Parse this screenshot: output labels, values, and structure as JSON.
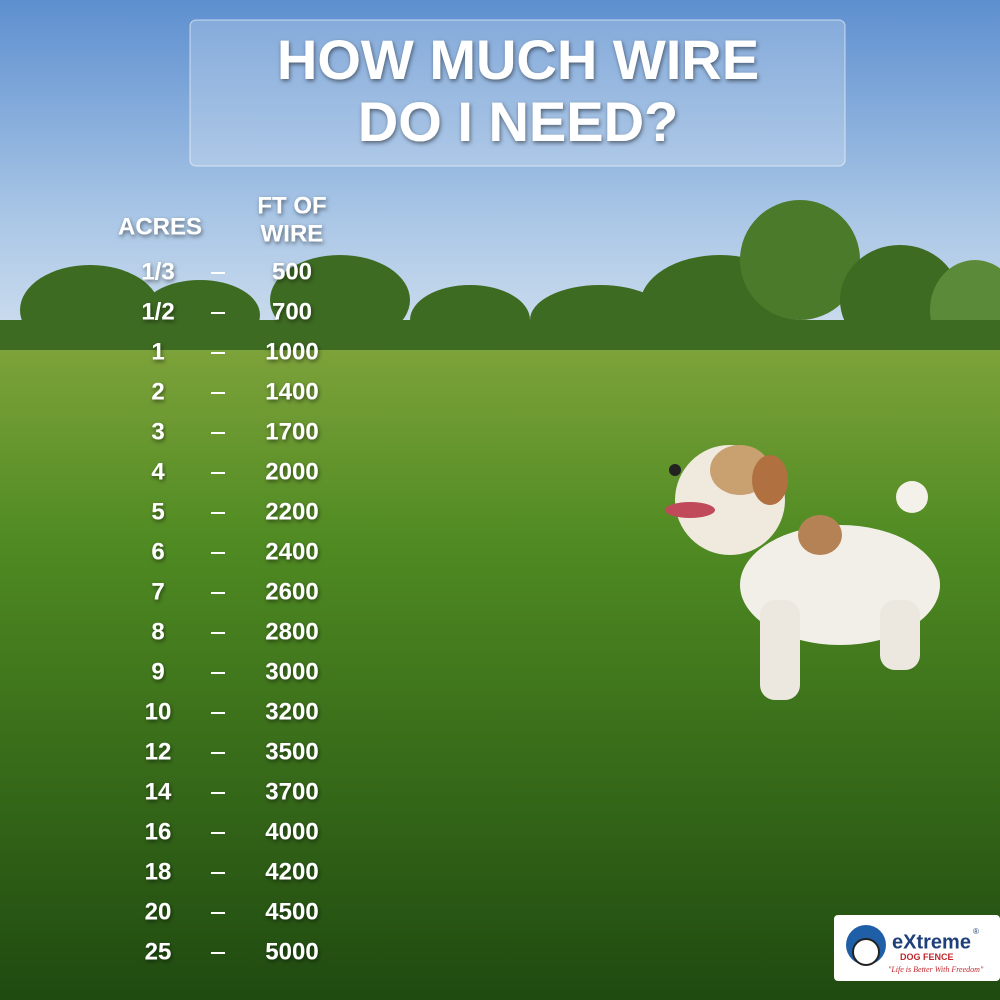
{
  "title": {
    "lines": [
      "HOW MUCH WIRE",
      "DO I  NEED?"
    ]
  },
  "table": {
    "headers": {
      "acres": "ACRES",
      "feet": [
        "FT OF",
        "WIRE"
      ]
    },
    "rows": [
      {
        "acres": "1/3",
        "feet": 500
      },
      {
        "acres": "1/2",
        "feet": 700
      },
      {
        "acres": 1,
        "feet": 1000
      },
      {
        "acres": 2,
        "feet": 1400
      },
      {
        "acres": 3,
        "feet": 1700
      },
      {
        "acres": 4,
        "feet": 2000
      },
      {
        "acres": 5,
        "feet": 2200
      },
      {
        "acres": 6,
        "feet": 2400
      },
      {
        "acres": 7,
        "feet": 2600
      },
      {
        "acres": 8,
        "feet": 2800
      },
      {
        "acres": 9,
        "feet": 3000
      },
      {
        "acres": 10,
        "feet": 3200
      },
      {
        "acres": 12,
        "feet": 3500
      },
      {
        "acres": 14,
        "feet": 3700
      },
      {
        "acres": 16,
        "feet": 4000
      },
      {
        "acres": 18,
        "feet": 4200
      },
      {
        "acres": 20,
        "feet": 4500
      },
      {
        "acres": 25,
        "feet": 5000
      }
    ]
  },
  "logo": {
    "brand": "eXtreme",
    "mark": "®",
    "sub": "DOG FENCE",
    "slogan": "\"Life is Better With Freedom\""
  }
}
